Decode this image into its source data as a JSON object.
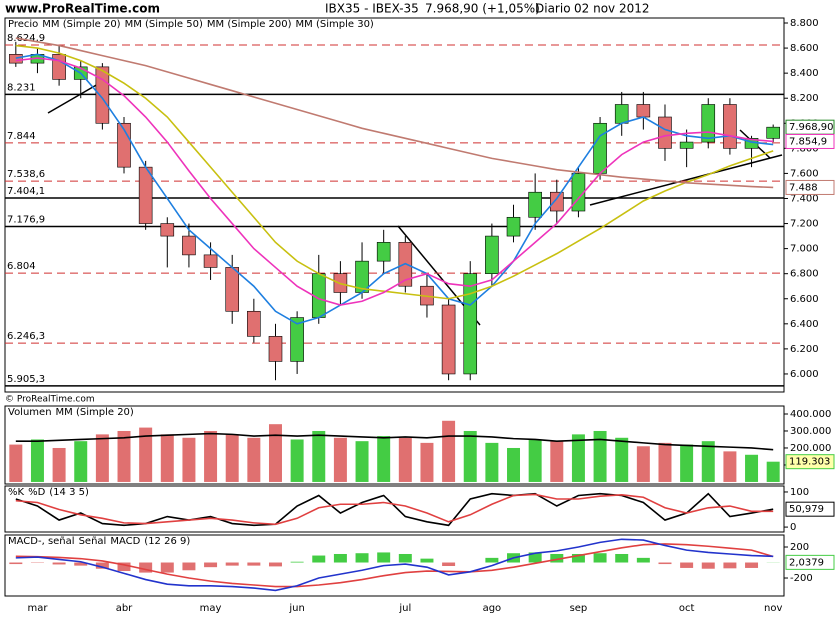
{
  "header": {
    "site": "www.ProRealTime.com",
    "symbol": "IBX35 - IBEX-35",
    "last": "7.968,90 (+1,05%)",
    "period": "Diario",
    "date": "02 nov 2012"
  },
  "footer": "© ProRealTime.com",
  "chart_data": [
    {
      "type": "candlestick",
      "name": "Precio",
      "up_color": "#44cc44",
      "down_color": "#e07070",
      "last_label": "7.968,90",
      "ylim": [
        5856,
        8840
      ],
      "yticks": [
        {
          "value": 6000,
          "label": "6.000"
        },
        {
          "value": 6200,
          "label": "6.200"
        },
        {
          "value": 6400,
          "label": "6.400"
        },
        {
          "value": 6600,
          "label": "6.600"
        },
        {
          "value": 6800,
          "label": "6.800"
        },
        {
          "value": 7000,
          "label": "7.000"
        },
        {
          "value": 7200,
          "label": "7.200"
        },
        {
          "value": 7400,
          "label": "7.400"
        },
        {
          "value": 7600,
          "label": "7.600"
        },
        {
          "value": 7800,
          "label": "7.800"
        },
        {
          "value": 8000,
          "label": "8.000"
        },
        {
          "value": 8200,
          "label": "8.200"
        },
        {
          "value": 8400,
          "label": "8.400"
        },
        {
          "value": 8600,
          "label": "8.600"
        },
        {
          "value": 8800,
          "label": "8.800"
        }
      ],
      "open": [
        8550,
        8480,
        8550,
        8350,
        8450,
        8000,
        7650,
        7200,
        7100,
        6950,
        6850,
        6500,
        6300,
        6100,
        6450,
        6800,
        6650,
        6900,
        7050,
        6700,
        6550,
        6000,
        6800,
        7100,
        7250,
        7450,
        7300,
        7600,
        8000,
        8150,
        8050,
        7800,
        7850,
        8150,
        7800,
        7880
      ],
      "high": [
        8650,
        8600,
        8620,
        8500,
        8480,
        8050,
        7700,
        7250,
        7200,
        7050,
        6950,
        6600,
        6400,
        6500,
        6950,
        6900,
        7050,
        7150,
        7100,
        6800,
        6600,
        6900,
        7200,
        7350,
        7600,
        7550,
        7650,
        8050,
        8250,
        8250,
        8150,
        7950,
        8200,
        8200,
        7900,
        7990
      ],
      "low": [
        8450,
        8400,
        8300,
        8200,
        7950,
        7600,
        7150,
        6850,
        6850,
        6750,
        6400,
        6250,
        5950,
        6000,
        6400,
        6550,
        6600,
        6800,
        6650,
        6450,
        5950,
        5950,
        6700,
        7050,
        7150,
        7200,
        7250,
        7550,
        7900,
        7950,
        7700,
        7650,
        7800,
        7750,
        7650,
        7850
      ],
      "close": [
        8480,
        8550,
        8350,
        8450,
        8000,
        7650,
        7200,
        7100,
        6950,
        6850,
        6500,
        6300,
        6100,
        6450,
        6800,
        6650,
        6900,
        7050,
        6700,
        6550,
        6000,
        6800,
        7100,
        7250,
        7450,
        7300,
        7600,
        8000,
        8150,
        8050,
        7800,
        7850,
        8150,
        7800,
        7880,
        7968.9
      ],
      "levels": [
        {
          "value": 8624.9,
          "label": "8.624,9",
          "style": "dashed"
        },
        {
          "value": 8231,
          "label": "8.231",
          "style": "solid"
        },
        {
          "value": 7844,
          "label": "7.844",
          "style": "dashed"
        },
        {
          "value": 7538.6,
          "label": "7.538,6",
          "style": "dashed"
        },
        {
          "value": 7404.1,
          "label": "7.404,1",
          "style": "solid"
        },
        {
          "value": 7176.9,
          "label": "7.176,9",
          "style": "solid"
        },
        {
          "value": 6804,
          "label": "6.804",
          "style": "dashed"
        },
        {
          "value": 6246.3,
          "label": "6.246,3",
          "style": "dashed"
        },
        {
          "value": 5905.3,
          "label": "5.905,3",
          "style": "solid"
        }
      ],
      "series": [
        {
          "name": "MM (Simple 20)",
          "style": "line",
          "color": "#1e7fe0",
          "values": [
            8520,
            8550,
            8500,
            8400,
            8200,
            7950,
            7650,
            7400,
            7150,
            7000,
            6850,
            6700,
            6500,
            6400,
            6450,
            6550,
            6650,
            6800,
            6880,
            6800,
            6600,
            6550,
            6700,
            6900,
            7200,
            7400,
            7650,
            7900,
            8000,
            8050,
            7950,
            7900,
            7880,
            7900,
            7850,
            7830
          ]
        },
        {
          "name": "MM (Simple 50)",
          "style": "line",
          "color": "#c8c010",
          "values": [
            8620,
            8600,
            8560,
            8500,
            8420,
            8320,
            8200,
            8050,
            7850,
            7650,
            7450,
            7250,
            7050,
            6900,
            6800,
            6720,
            6680,
            6660,
            6640,
            6620,
            6600,
            6640,
            6700,
            6780,
            6870,
            6960,
            7060,
            7160,
            7270,
            7380,
            7460,
            7530,
            7590,
            7660,
            7720,
            7780
          ]
        },
        {
          "name": "MM (Simple 200)",
          "style": "line",
          "color": "#c07a70",
          "last_label": "7.488",
          "values": [
            8680,
            8650,
            8620,
            8580,
            8540,
            8500,
            8460,
            8410,
            8360,
            8310,
            8260,
            8210,
            8160,
            8110,
            8060,
            8010,
            7960,
            7920,
            7880,
            7840,
            7800,
            7760,
            7720,
            7690,
            7660,
            7630,
            7610,
            7590,
            7570,
            7555,
            7540,
            7525,
            7515,
            7505,
            7495,
            7488
          ]
        },
        {
          "name": "MM (Simple 30)",
          "style": "line",
          "color": "#ee33bb",
          "last_label": "7.854,9",
          "values": [
            8500,
            8520,
            8500,
            8440,
            8350,
            8220,
            8050,
            7850,
            7620,
            7400,
            7200,
            7000,
            6850,
            6700,
            6600,
            6550,
            6580,
            6650,
            6750,
            6800,
            6720,
            6700,
            6750,
            6900,
            7050,
            7200,
            7400,
            7600,
            7750,
            7850,
            7900,
            7920,
            7930,
            7900,
            7870,
            7854.9
          ]
        }
      ]
    },
    {
      "type": "bar",
      "ylim": [
        -12000,
        447000
      ],
      "yticks": [
        {
          "value": 100000,
          "label": "100.000"
        },
        {
          "value": 200000,
          "label": "200.000"
        },
        {
          "value": 300000,
          "label": "300.000"
        },
        {
          "value": 400000,
          "label": "400.000"
        }
      ],
      "series": [
        {
          "name": "Volumen",
          "style": "bar",
          "color": "#44cc44",
          "down_color": "#e07070",
          "last_label": "119.303",
          "values": [
            220000,
            250000,
            200000,
            240000,
            280000,
            300000,
            320000,
            280000,
            260000,
            300000,
            280000,
            260000,
            340000,
            250000,
            300000,
            260000,
            240000,
            270000,
            260000,
            230000,
            360000,
            300000,
            230000,
            200000,
            250000,
            240000,
            280000,
            300000,
            260000,
            210000,
            230000,
            220000,
            240000,
            180000,
            160000,
            119303
          ]
        },
        {
          "name": "MM (Simple 20)",
          "style": "line",
          "color": "#000000",
          "values": [
            240000,
            240000,
            245000,
            250000,
            255000,
            260000,
            270000,
            275000,
            280000,
            285000,
            280000,
            270000,
            275000,
            270000,
            275000,
            270000,
            265000,
            260000,
            265000,
            260000,
            270000,
            270000,
            265000,
            255000,
            250000,
            240000,
            245000,
            250000,
            240000,
            230000,
            220000,
            215000,
            210000,
            205000,
            200000,
            190000
          ]
        }
      ]
    },
    {
      "type": "line",
      "params": "(14 3 5)",
      "ylim": [
        -14,
        117
      ],
      "yticks": [
        0,
        100
      ],
      "series": [
        {
          "name": "%K",
          "style": "line",
          "color": "#000000",
          "last_label": "50,979",
          "values": [
            80,
            60,
            20,
            40,
            10,
            5,
            10,
            30,
            20,
            30,
            10,
            5,
            8,
            60,
            90,
            40,
            70,
            90,
            30,
            15,
            5,
            80,
            95,
            90,
            95,
            60,
            90,
            95,
            90,
            70,
            20,
            40,
            95,
            30,
            40,
            50.979
          ]
        },
        {
          "name": "%D",
          "style": "line",
          "color": "#e04040",
          "values": [
            75,
            70,
            50,
            35,
            25,
            12,
            10,
            15,
            20,
            25,
            20,
            12,
            8,
            25,
            55,
            65,
            65,
            70,
            60,
            40,
            15,
            35,
            65,
            90,
            93,
            80,
            80,
            88,
            92,
            85,
            55,
            40,
            55,
            60,
            45,
            45
          ]
        }
      ]
    },
    {
      "type": "line",
      "params": "(12 26 9)",
      "ylim": [
        -432,
        355
      ],
      "yticks": [
        -200,
        200
      ],
      "categories": [
        null,
        "mar",
        null,
        null,
        null,
        "abr",
        null,
        null,
        null,
        "may",
        null,
        null,
        null,
        "jun",
        null,
        null,
        null,
        null,
        "jul",
        null,
        null,
        null,
        "ago",
        null,
        null,
        null,
        "sep",
        null,
        null,
        null,
        null,
        "oct",
        null,
        null,
        null,
        "nov"
      ],
      "series": [
        {
          "name": "MACD-, señal",
          "style": "bar",
          "color": "#44cc44",
          "down_color": "#e07070",
          "last_label": "2,0379",
          "values": [
            -20,
            -5,
            -25,
            -40,
            -80,
            -110,
            -130,
            -130,
            -100,
            -60,
            -40,
            -40,
            -50,
            10,
            90,
            110,
            120,
            130,
            110,
            50,
            -45,
            0,
            60,
            120,
            130,
            110,
            110,
            120,
            110,
            60,
            -20,
            -70,
            -80,
            -75,
            -70,
            2.0379
          ]
        },
        {
          "name": "Señal",
          "style": "line",
          "color": "#e04040",
          "values": [
            80,
            75,
            65,
            50,
            20,
            -30,
            -90,
            -150,
            -200,
            -240,
            -270,
            -290,
            -310,
            -310,
            -290,
            -260,
            -220,
            -170,
            -130,
            -110,
            -115,
            -120,
            -100,
            -60,
            -10,
            40,
            90,
            140,
            190,
            230,
            240,
            230,
            210,
            185,
            160,
            78
          ]
        },
        {
          "name": "MACD",
          "style": "line",
          "color": "#2233cc",
          "values": [
            60,
            70,
            40,
            10,
            -60,
            -140,
            -220,
            -280,
            -300,
            -300,
            -310,
            -330,
            -360,
            -300,
            -200,
            -150,
            -100,
            -40,
            -20,
            -60,
            -160,
            -120,
            -40,
            60,
            120,
            150,
            200,
            260,
            300,
            290,
            220,
            160,
            130,
            110,
            90,
            80
          ]
        }
      ]
    }
  ]
}
